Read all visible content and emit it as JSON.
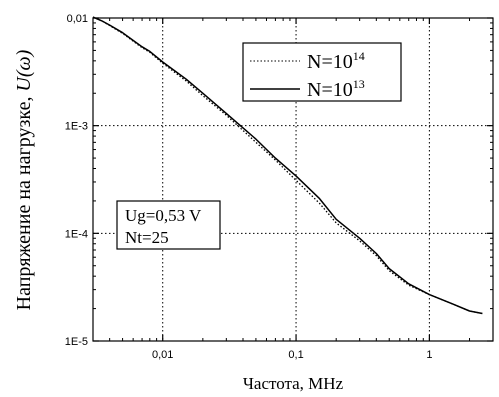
{
  "chart_data": {
    "type": "line",
    "xlabel": "Частота, MHz",
    "ylabel_prefix": "Напряжение на нагрузке, ",
    "ylabel_symbol": "U(ω)",
    "x_scale": "log",
    "y_scale": "log",
    "xlim": [
      0.003,
      3
    ],
    "ylim": [
      1e-05,
      0.01
    ],
    "x_ticks": [
      {
        "value": 0.01,
        "label": "0,01"
      },
      {
        "value": 0.1,
        "label": "0,1"
      },
      {
        "value": 1,
        "label": "1"
      }
    ],
    "y_ticks": [
      {
        "value": 0.01,
        "label": "0,01"
      },
      {
        "value": 0.001,
        "label": "1E-3"
      },
      {
        "value": 0.0001,
        "label": "1E-4"
      },
      {
        "value": 1e-05,
        "label": "1E-5"
      }
    ],
    "grid": "dotted",
    "legend_position": "top-right",
    "series": [
      {
        "name_base": "N=10",
        "name_exp": "14",
        "style": "dotted",
        "x": [
          0.003,
          0.0035,
          0.004,
          0.005,
          0.006,
          0.007,
          0.008,
          0.01,
          0.015,
          0.02,
          0.03,
          0.05,
          0.07,
          0.1,
          0.15,
          0.2,
          0.3,
          0.4,
          0.5,
          0.7,
          1,
          1.5,
          2,
          2.5
        ],
        "y": [
          0.0102,
          0.0094,
          0.0085,
          0.0072,
          0.0061,
          0.0053,
          0.0048,
          0.0038,
          0.0026,
          0.0019,
          0.00125,
          0.0007,
          0.00048,
          0.00031,
          0.00019,
          0.000125,
          8.5e-05,
          6.2e-05,
          4.5e-05,
          3.3e-05,
          2.7e-05,
          2.2e-05,
          1.9e-05,
          1.8e-05
        ]
      },
      {
        "name_base": "N=10",
        "name_exp": "13",
        "style": "solid",
        "x": [
          0.003,
          0.0035,
          0.004,
          0.005,
          0.006,
          0.007,
          0.008,
          0.01,
          0.015,
          0.02,
          0.03,
          0.05,
          0.07,
          0.1,
          0.15,
          0.2,
          0.3,
          0.4,
          0.5,
          0.7,
          1,
          1.5,
          2,
          2.5
        ],
        "y": [
          0.0102,
          0.0094,
          0.0086,
          0.0073,
          0.0062,
          0.0054,
          0.0049,
          0.0039,
          0.0027,
          0.002,
          0.0013,
          0.00075,
          0.0005,
          0.00034,
          0.00021,
          0.000135,
          9e-05,
          6.5e-05,
          4.7e-05,
          3.4e-05,
          2.7e-05,
          2.2e-05,
          1.9e-05,
          1.8e-05
        ]
      }
    ],
    "annotation": {
      "lines": [
        "Ug=0,53 V",
        "Nt=25"
      ]
    }
  }
}
